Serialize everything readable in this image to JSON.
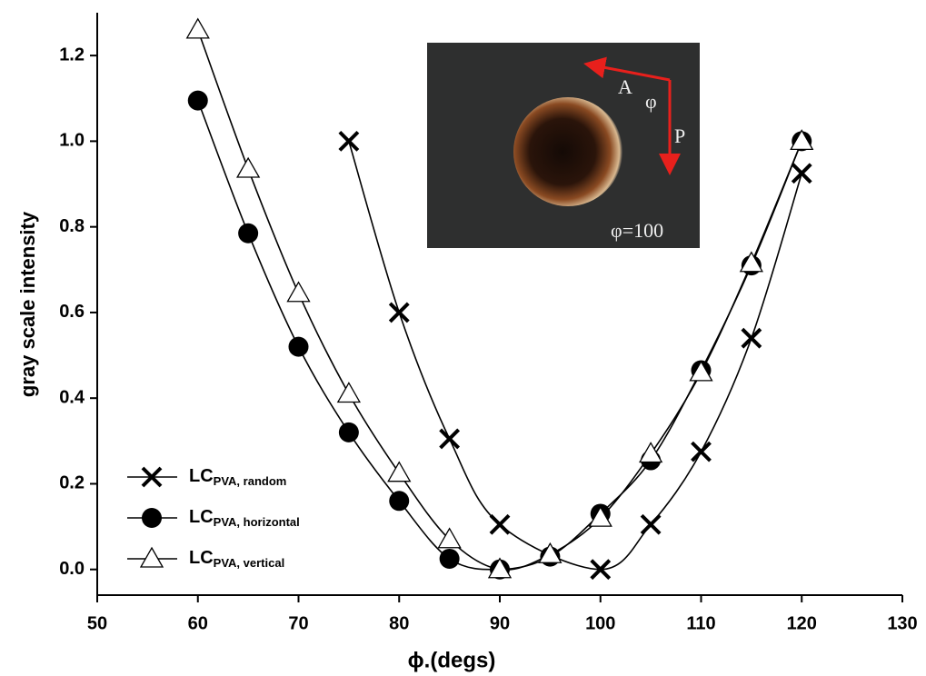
{
  "chart_data": {
    "type": "line",
    "x_label": "ϕ.(degs)",
    "y_label": "gray scale intensity",
    "xlim": [
      50,
      130
    ],
    "xticks": [
      50,
      60,
      70,
      80,
      90,
      100,
      110,
      120,
      130
    ],
    "ylim": [
      -0.06,
      1.3
    ],
    "yticks": [
      {
        "value": 0,
        "label": "0.0"
      },
      0.2,
      0.4,
      0.6,
      0.8,
      {
        "value": 1,
        "label": "1.0"
      },
      1.2
    ],
    "series": [
      {
        "name": "LC",
        "subscript": "PVA, random",
        "marker": "x",
        "color": "#000",
        "x": [
          75,
          80,
          85,
          90,
          100,
          105,
          110,
          115,
          120
        ],
        "values": [
          1.0,
          0.6,
          0.305,
          0.105,
          0.0,
          0.105,
          0.275,
          0.54,
          0.925
        ]
      },
      {
        "name": "LC",
        "subscript": "PVA, horizontal",
        "marker": "circle",
        "color": "#000",
        "x": [
          60,
          65,
          70,
          75,
          80,
          85,
          90,
          95,
          100,
          105,
          110,
          115,
          120
        ],
        "values": [
          1.095,
          0.785,
          0.52,
          0.32,
          0.16,
          0.025,
          0.0,
          0.03,
          0.13,
          0.255,
          0.465,
          0.71,
          1.0
        ]
      },
      {
        "name": "LC",
        "subscript": "PVA, vertical",
        "marker": "triangle",
        "color": "#000",
        "x": [
          60,
          65,
          70,
          75,
          80,
          85,
          90,
          95,
          100,
          105,
          110,
          115,
          120
        ],
        "values": [
          1.26,
          0.935,
          0.645,
          0.41,
          0.225,
          0.07,
          0.0,
          0.035,
          0.12,
          0.27,
          0.46,
          0.715,
          1.0
        ]
      }
    ],
    "inset": {
      "labels": [
        "A",
        "φ",
        "P",
        "φ=100"
      ]
    }
  }
}
